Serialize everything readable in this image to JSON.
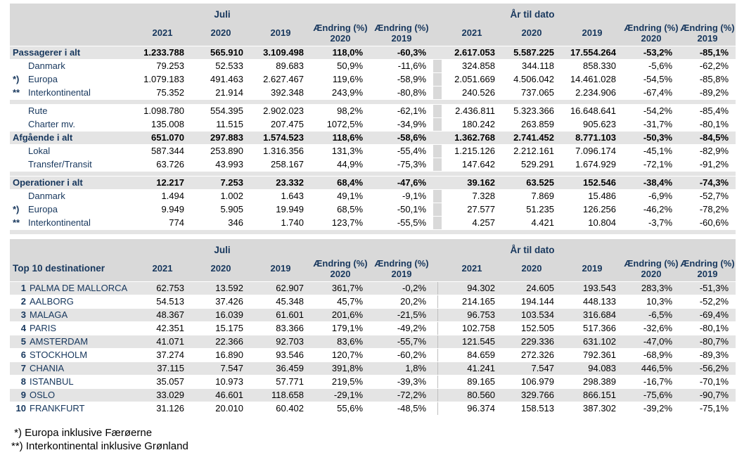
{
  "colors": {
    "header_bg": "#d9d9d9",
    "stripe_bg": "#e4e4e4",
    "navy_text": "#17375d",
    "number_text": "#000000",
    "divider_line": "#bfbfbf"
  },
  "traffic_table": {
    "period_left": "Juli",
    "period_right": "År til dato",
    "years": [
      "2021",
      "2020",
      "2019"
    ],
    "change_2020": {
      "line1": "Ændring (%)",
      "line2": "2020"
    },
    "change_2019": {
      "line1": "Ændring (%)",
      "line2": "2019"
    },
    "rows": [
      {
        "type": "total",
        "marker": "",
        "label": "Passagerer i alt",
        "juli": [
          "1.233.788",
          "565.910",
          "3.109.498",
          "118,0%",
          "-60,3%"
        ],
        "ytd": [
          "2.617.053",
          "5.587.225",
          "17.554.264",
          "-53,2%",
          "-85,1%"
        ]
      },
      {
        "type": "sub",
        "marker": "",
        "label": "Danmark",
        "juli": [
          "79.253",
          "52.533",
          "89.683",
          "50,9%",
          "-11,6%"
        ],
        "ytd": [
          "324.858",
          "344.118",
          "858.330",
          "-5,6%",
          "-62,2%"
        ]
      },
      {
        "type": "sub",
        "marker": "*)",
        "label": "Europa",
        "juli": [
          "1.079.183",
          "491.463",
          "2.627.467",
          "119,6%",
          "-58,9%"
        ],
        "ytd": [
          "2.051.669",
          "4.506.042",
          "14.461.028",
          "-54,5%",
          "-85,8%"
        ]
      },
      {
        "type": "sub",
        "marker": "**",
        "label": "Interkontinental",
        "juli": [
          "75.352",
          "21.914",
          "392.348",
          "243,9%",
          "-80,8%"
        ],
        "ytd": [
          "240.526",
          "737.065",
          "2.234.906",
          "-67,4%",
          "-89,2%"
        ]
      },
      {
        "type": "spacer"
      },
      {
        "type": "sub",
        "marker": "",
        "label": "Rute",
        "juli": [
          "1.098.780",
          "554.395",
          "2.902.023",
          "98,2%",
          "-62,1%"
        ],
        "ytd": [
          "2.436.811",
          "5.323.366",
          "16.648.641",
          "-54,2%",
          "-85,4%"
        ]
      },
      {
        "type": "sub",
        "marker": "",
        "label": "Charter mv.",
        "juli": [
          "135.008",
          "11.515",
          "207.475",
          "1072,5%",
          "-34,9%"
        ],
        "ytd": [
          "180.242",
          "263.859",
          "905.623",
          "-31,7%",
          "-80,1%"
        ]
      },
      {
        "type": "total",
        "marker": "",
        "label": "Afgående i alt",
        "juli": [
          "651.070",
          "297.883",
          "1.574.523",
          "118,6%",
          "-58,6%"
        ],
        "ytd": [
          "1.362.768",
          "2.741.452",
          "8.771.103",
          "-50,3%",
          "-84,5%"
        ]
      },
      {
        "type": "sub",
        "marker": "",
        "label": "Lokal",
        "juli": [
          "587.344",
          "253.890",
          "1.316.356",
          "131,3%",
          "-55,4%"
        ],
        "ytd": [
          "1.215.126",
          "2.212.161",
          "7.096.174",
          "-45,1%",
          "-82,9%"
        ]
      },
      {
        "type": "sub",
        "marker": "",
        "label": "Transfer/Transit",
        "juli": [
          "63.726",
          "43.993",
          "258.167",
          "44,9%",
          "-75,3%"
        ],
        "ytd": [
          "147.642",
          "529.291",
          "1.674.929",
          "-72,1%",
          "-91,2%"
        ]
      },
      {
        "type": "spacer"
      },
      {
        "type": "total",
        "marker": "",
        "label": "Operationer i alt",
        "juli": [
          "12.217",
          "7.253",
          "23.332",
          "68,4%",
          "-47,6%"
        ],
        "ytd": [
          "39.162",
          "63.525",
          "152.546",
          "-38,4%",
          "-74,3%"
        ]
      },
      {
        "type": "sub",
        "marker": "",
        "label": "Danmark",
        "juli": [
          "1.494",
          "1.002",
          "1.643",
          "49,1%",
          "-9,1%"
        ],
        "ytd": [
          "7.328",
          "7.869",
          "15.486",
          "-6,9%",
          "-52,7%"
        ]
      },
      {
        "type": "sub",
        "marker": "*)",
        "label": "Europa",
        "juli": [
          "9.949",
          "5.905",
          "19.949",
          "68,5%",
          "-50,1%"
        ],
        "ytd": [
          "27.577",
          "51.235",
          "126.256",
          "-46,2%",
          "-78,2%"
        ]
      },
      {
        "type": "sub",
        "marker": "**",
        "label": "Interkontinental",
        "juli": [
          "774",
          "346",
          "1.740",
          "123,7%",
          "-55,5%"
        ],
        "ytd": [
          "4.257",
          "4.421",
          "10.804",
          "-3,7%",
          "-60,6%"
        ]
      },
      {
        "type": "spacer"
      }
    ]
  },
  "top10_table": {
    "title": "Top 10 destinationer",
    "period_left": "Juli",
    "period_right": "År til dato",
    "years": [
      "2021",
      "2020",
      "2019"
    ],
    "change_2020": {
      "line1": "Ændring (%)",
      "line2": "2020"
    },
    "change_2019": {
      "line1": "Ændring (%)",
      "line2": "2019"
    },
    "rows": [
      {
        "rank": "1",
        "label": "PALMA DE MALLORCA",
        "juli": [
          "62.753",
          "13.592",
          "62.907",
          "361,7%",
          "-0,2%"
        ],
        "ytd": [
          "94.302",
          "24.605",
          "193.543",
          "283,3%",
          "-51,3%"
        ]
      },
      {
        "rank": "2",
        "label": "AALBORG",
        "juli": [
          "54.513",
          "37.426",
          "45.348",
          "45,7%",
          "20,2%"
        ],
        "ytd": [
          "214.165",
          "194.144",
          "448.133",
          "10,3%",
          "-52,2%"
        ]
      },
      {
        "rank": "3",
        "label": "MALAGA",
        "juli": [
          "48.367",
          "16.039",
          "61.601",
          "201,6%",
          "-21,5%"
        ],
        "ytd": [
          "96.753",
          "103.534",
          "316.684",
          "-6,5%",
          "-69,4%"
        ]
      },
      {
        "rank": "4",
        "label": "PARIS",
        "juli": [
          "42.351",
          "15.175",
          "83.366",
          "179,1%",
          "-49,2%"
        ],
        "ytd": [
          "102.758",
          "152.505",
          "517.366",
          "-32,6%",
          "-80,1%"
        ]
      },
      {
        "rank": "5",
        "label": "AMSTERDAM",
        "juli": [
          "41.071",
          "22.366",
          "92.703",
          "83,6%",
          "-55,7%"
        ],
        "ytd": [
          "121.545",
          "229.336",
          "631.102",
          "-47,0%",
          "-80,7%"
        ]
      },
      {
        "rank": "6",
        "label": "STOCKHOLM",
        "juli": [
          "37.274",
          "16.890",
          "93.546",
          "120,7%",
          "-60,2%"
        ],
        "ytd": [
          "84.659",
          "272.326",
          "792.361",
          "-68,9%",
          "-89,3%"
        ]
      },
      {
        "rank": "7",
        "label": "CHANIA",
        "juli": [
          "37.115",
          "7.547",
          "36.459",
          "391,8%",
          "1,8%"
        ],
        "ytd": [
          "41.241",
          "7.547",
          "94.083",
          "446,5%",
          "-56,2%"
        ]
      },
      {
        "rank": "8",
        "label": "ISTANBUL",
        "juli": [
          "35.057",
          "10.973",
          "57.771",
          "219,5%",
          "-39,3%"
        ],
        "ytd": [
          "89.165",
          "106.979",
          "298.389",
          "-16,7%",
          "-70,1%"
        ]
      },
      {
        "rank": "9",
        "label": "OSLO",
        "juli": [
          "33.029",
          "46.601",
          "118.658",
          "-29,1%",
          "-72,2%"
        ],
        "ytd": [
          "80.560",
          "329.766",
          "866.151",
          "-75,6%",
          "-90,7%"
        ]
      },
      {
        "rank": "10",
        "label": "FRANKFURT",
        "juli": [
          "31.126",
          "20.010",
          "60.402",
          "55,6%",
          "-48,5%"
        ],
        "ytd": [
          "96.374",
          "158.513",
          "387.302",
          "-39,2%",
          "-75,1%"
        ]
      }
    ]
  },
  "footnotes": [
    " *) Europa inklusive Færøerne",
    "**) Interkontinental inklusive Grønland"
  ]
}
